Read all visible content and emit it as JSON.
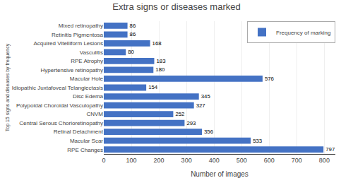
{
  "chart_data": {
    "type": "bar",
    "orientation": "horizontal",
    "title": "Extra signs or diseases marked",
    "xlabel": "Number of images",
    "ylabel": "Top 15 signs and diseases by frequency",
    "categories": [
      "RPE Changes",
      "Macular Scar",
      "Retinal Detachment",
      "Central Serous Chorioretinopathy",
      "CNVM",
      "Polypoidal Choroidal Vasculopathy",
      "Disc Edema",
      "Idiopathic Juxtafoveal Telangiectasis",
      "Macular Hole",
      "Hypertensive retinopathy",
      "RPE Atrophy",
      "Vasculitis",
      "Acquired Vitelliform Lesions",
      "Retinitis Pigmentosa",
      "Mixed retinopathy"
    ],
    "series": [
      {
        "name": "Frequency of marking",
        "color": "#4472C4",
        "values": [
          797,
          533,
          356,
          293,
          252,
          327,
          345,
          154,
          576,
          180,
          183,
          80,
          168,
          86,
          86
        ]
      }
    ],
    "xlim": [
      0,
      840
    ],
    "xticks": [
      0,
      100,
      200,
      300,
      400,
      500,
      600,
      700,
      800
    ],
    "grid": true,
    "legend": "upper right",
    "data_labels": true
  }
}
